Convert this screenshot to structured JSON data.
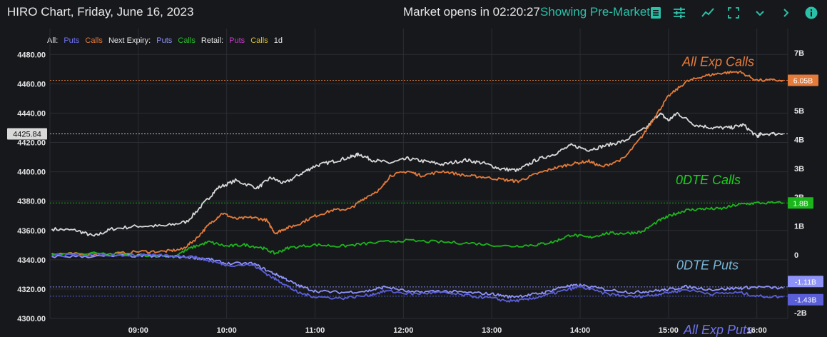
{
  "header": {
    "title": "HIRO Chart, Friday, June 16, 2023",
    "market_status": "Market opens in 02:20:27",
    "premarket_label": "Showing Pre-Market",
    "toolbar_icons": [
      "list-icon",
      "sliders-icon",
      "trend-icon",
      "fullscreen-icon",
      "chevron-down-icon",
      "chevron-right-icon",
      "info-icon"
    ]
  },
  "legend": {
    "groups": [
      {
        "label": "All:",
        "items": [
          {
            "text": "Puts",
            "color": "#6f73f0"
          },
          {
            "text": "Calls",
            "color": "#e47b3b"
          }
        ]
      },
      {
        "label": "Next Expiry:",
        "items": [
          {
            "text": "Puts",
            "color": "#8f93f8"
          },
          {
            "text": "Calls",
            "color": "#22c32a"
          }
        ]
      },
      {
        "label": "Retail:",
        "items": [
          {
            "text": "Puts",
            "color": "#c63fc9"
          },
          {
            "text": "Calls",
            "color": "#d6c03b"
          }
        ]
      }
    ],
    "timeframe": "1d"
  },
  "colors": {
    "background": "#17181c",
    "grid": "#2b2d33",
    "accent": "#2bc0a8",
    "all_calls": "#e47b3b",
    "all_puts": "#5a5fd8",
    "zero_calls": "#1cb51c",
    "zero_puts": "#8f93f8",
    "price": "#d8d8d8"
  },
  "chart_data": {
    "type": "line",
    "x_ticks": [
      "09:00",
      "10:00",
      "11:00",
      "12:00",
      "13:00",
      "14:00",
      "15:00",
      "16:00"
    ],
    "y_left": {
      "ticks": [
        "4300.00",
        "4320.00",
        "4340.00",
        "4360.00",
        "4380.00",
        "4400.00",
        "4420.00",
        "4440.00",
        "4460.00",
        "4480.00"
      ],
      "range": [
        4300,
        4485
      ]
    },
    "y_right": {
      "ticks": [
        "7B",
        "6B",
        "5B",
        "4B",
        "3B",
        "2B",
        "1B",
        "0",
        "-1B",
        "-2B"
      ],
      "range": [
        -2.2,
        7.2
      ]
    },
    "price_label": "4425.84",
    "annotations": [
      {
        "text": "All Exp Calls",
        "color": "#e47b3b"
      },
      {
        "text": "0DTE Calls",
        "color": "#1cd11c"
      },
      {
        "text": "0DTE Puts",
        "color": "#7ab6d8"
      },
      {
        "text": "All Exp Puts",
        "color": "#6f73f0"
      }
    ],
    "value_badges": [
      {
        "text": "6.05B",
        "value": 6.05,
        "color": "#e47b3b"
      },
      {
        "text": "1.8B",
        "value": 1.8,
        "color": "#1cb51c"
      },
      {
        "text": "-1.11B",
        "value": -1.11,
        "color": "#8f93f8"
      },
      {
        "text": "-1.43B",
        "value": -1.43,
        "color": "#5a5fd8"
      }
    ],
    "series": [
      {
        "axis": "left",
        "color": "#d8d8d8",
        "x": [
          8.02,
          8.3,
          8.5,
          8.7,
          9.0,
          9.3,
          9.55,
          9.75,
          9.9,
          10.1,
          10.35,
          10.5,
          10.65,
          10.85,
          11.0,
          11.2,
          11.4,
          11.5,
          11.65,
          11.85,
          12.05,
          12.25,
          12.45,
          12.7,
          12.9,
          13.1,
          13.3,
          13.5,
          13.7,
          13.9,
          14.1,
          14.3,
          14.5,
          14.75,
          14.9,
          15.0,
          15.1,
          15.3,
          15.5,
          15.7,
          15.85,
          16.0,
          16.05,
          16.3
        ],
        "y": [
          4361,
          4360,
          4356,
          4361,
          4363,
          4363,
          4366,
          4379,
          4389,
          4394,
          4389,
          4396,
          4392,
          4399,
          4404,
          4407,
          4410,
          4412,
          4408,
          4406,
          4409,
          4407,
          4405,
          4408,
          4406,
          4402,
          4401,
          4408,
          4412,
          4418,
          4415,
          4418,
          4421,
          4430,
          4440,
          4435,
          4440,
          4432,
          4430,
          4430,
          4432,
          4424,
          4425.84,
          4426
        ]
      },
      {
        "axis": "right",
        "color": "#e47b3b",
        "x": [
          8.02,
          8.3,
          8.6,
          9.0,
          9.3,
          9.5,
          9.65,
          9.8,
          9.95,
          10.1,
          10.3,
          10.45,
          10.55,
          10.65,
          10.8,
          11.0,
          11.2,
          11.4,
          11.55,
          11.75,
          11.85,
          12.05,
          12.2,
          12.45,
          12.7,
          12.9,
          13.15,
          13.3,
          13.5,
          13.7,
          13.9,
          14.1,
          14.25,
          14.5,
          14.7,
          14.85,
          15.0,
          15.2,
          15.4,
          15.6,
          15.8,
          16.0,
          16.3
        ],
        "y": [
          0.05,
          0.03,
          0.0,
          0.12,
          0.12,
          0.2,
          0.55,
          1.05,
          1.45,
          1.25,
          1.3,
          1.2,
          0.75,
          0.9,
          1.05,
          1.35,
          1.55,
          1.6,
          1.95,
          2.3,
          2.75,
          2.9,
          2.75,
          2.9,
          2.75,
          2.7,
          2.6,
          2.55,
          2.8,
          3.0,
          3.15,
          3.25,
          3.05,
          3.35,
          4.1,
          4.8,
          5.5,
          6.0,
          6.2,
          6.3,
          6.35,
          6.05,
          6.05
        ]
      },
      {
        "axis": "right",
        "color": "#1cb51c",
        "x": [
          8.02,
          8.5,
          9.0,
          9.4,
          9.6,
          9.8,
          10.0,
          10.2,
          10.4,
          10.55,
          10.7,
          11.0,
          11.3,
          11.6,
          12.0,
          12.4,
          12.8,
          13.2,
          13.5,
          13.7,
          13.9,
          14.1,
          14.3,
          14.5,
          14.7,
          14.9,
          15.05,
          15.2,
          15.4,
          15.6,
          15.8,
          16.0,
          16.3
        ],
        "y": [
          0,
          0.05,
          0.0,
          -0.05,
          0.25,
          0.45,
          0.3,
          0.35,
          0.25,
          0.05,
          0.25,
          0.35,
          0.3,
          0.4,
          0.5,
          0.45,
          0.4,
          0.3,
          0.35,
          0.45,
          0.7,
          0.6,
          0.75,
          0.75,
          0.8,
          1.2,
          1.4,
          1.55,
          1.6,
          1.6,
          1.75,
          1.8,
          1.8
        ]
      },
      {
        "axis": "right",
        "color": "#8f93f8",
        "x": [
          8.02,
          8.5,
          9.0,
          9.3,
          9.6,
          9.8,
          10.0,
          10.3,
          10.5,
          10.65,
          10.8,
          11.0,
          11.3,
          11.6,
          11.8,
          12.1,
          12.4,
          12.7,
          13.0,
          13.2,
          13.4,
          13.6,
          13.8,
          14.0,
          14.3,
          14.6,
          14.8,
          15.0,
          15.2,
          15.5,
          15.8,
          16.0,
          16.3
        ],
        "y": [
          -0.05,
          -0.05,
          -0.03,
          -0.05,
          -0.08,
          -0.15,
          -0.3,
          -0.3,
          -0.6,
          -0.8,
          -1.05,
          -1.25,
          -1.3,
          -1.25,
          -1.1,
          -1.3,
          -1.25,
          -1.3,
          -1.35,
          -1.45,
          -1.4,
          -1.3,
          -1.1,
          -1.05,
          -1.2,
          -1.3,
          -1.25,
          -1.2,
          -1.1,
          -1.2,
          -1.15,
          -1.11,
          -1.15
        ]
      },
      {
        "axis": "right",
        "color": "#5a5fd8",
        "x": [
          8.02,
          8.5,
          9.0,
          9.3,
          9.6,
          9.8,
          10.0,
          10.3,
          10.5,
          10.65,
          10.8,
          11.0,
          11.3,
          11.6,
          11.8,
          12.1,
          12.4,
          12.7,
          13.0,
          13.2,
          13.4,
          13.6,
          13.8,
          14.0,
          14.3,
          14.6,
          14.8,
          15.0,
          15.2,
          15.5,
          15.8,
          16.0,
          16.3
        ],
        "y": [
          -0.02,
          0.0,
          -0.01,
          -0.02,
          -0.05,
          -0.2,
          -0.35,
          -0.35,
          -0.75,
          -1.0,
          -1.3,
          -1.45,
          -1.5,
          -1.4,
          -1.25,
          -1.35,
          -1.3,
          -1.4,
          -1.5,
          -1.6,
          -1.55,
          -1.4,
          -1.25,
          -1.1,
          -1.35,
          -1.45,
          -1.4,
          -1.3,
          -1.2,
          -1.35,
          -1.3,
          -1.43,
          -1.45
        ]
      }
    ]
  }
}
